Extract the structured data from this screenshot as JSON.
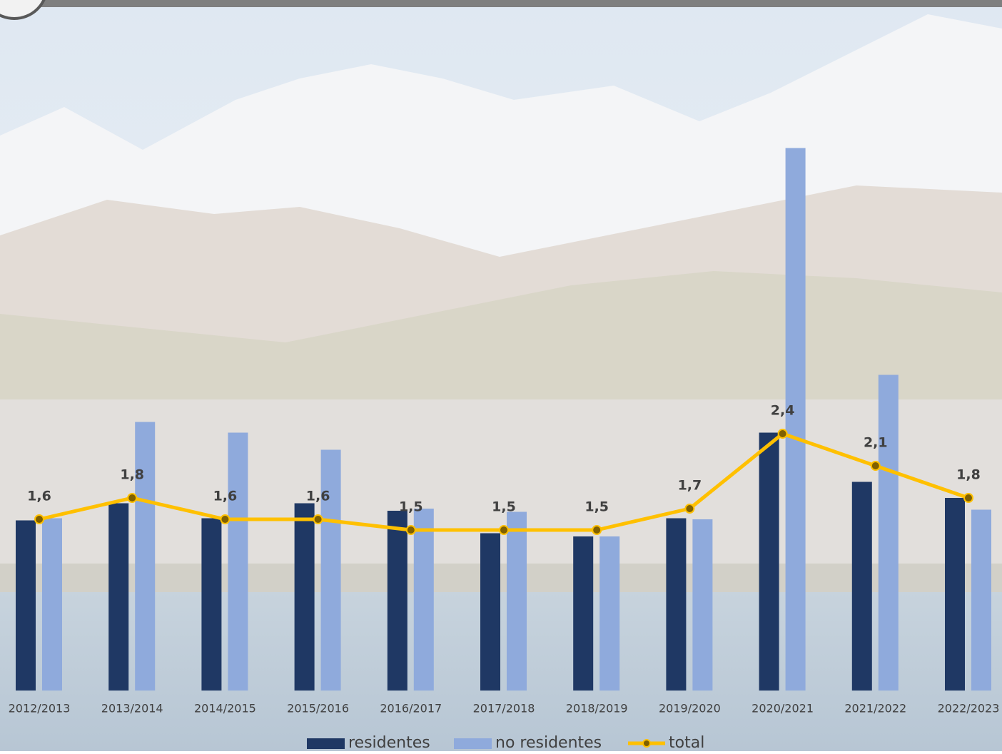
{
  "chart_data": {
    "type": "bar",
    "categories": [
      "2012/2013",
      "2013/2014",
      "2014/2015",
      "2015/2016",
      "2016/2017",
      "2017/2018",
      "2018/2019",
      "2019/2020",
      "2020/2021",
      "2021/2022",
      "2022/2023"
    ],
    "series": [
      {
        "name": "residentes",
        "color": "#1f3864",
        "type": "bar",
        "values": [
          1.59,
          1.75,
          1.61,
          1.75,
          1.68,
          1.47,
          1.44,
          1.61,
          2.41,
          1.95,
          1.8
        ]
      },
      {
        "name": "no residentes",
        "color": "#8faadc",
        "type": "bar",
        "values": [
          1.61,
          2.51,
          2.41,
          2.25,
          1.7,
          1.67,
          1.44,
          1.6,
          5.07,
          2.95,
          1.69
        ]
      },
      {
        "name": "total",
        "color": "#ffc000",
        "marker_color": "#7f6000",
        "type": "line",
        "values": [
          1.6,
          1.8,
          1.6,
          1.6,
          1.5,
          1.5,
          1.5,
          1.7,
          2.4,
          2.1,
          1.8
        ],
        "value_labels": [
          "1,6",
          "1,8",
          "1,6",
          "1,6",
          "1,5",
          "1,5",
          "1,5",
          "1,7",
          "2,4",
          "2,1",
          "1,8"
        ]
      }
    ],
    "ylim": [
      0,
      6
    ],
    "grid": false,
    "legend": "bottom"
  }
}
